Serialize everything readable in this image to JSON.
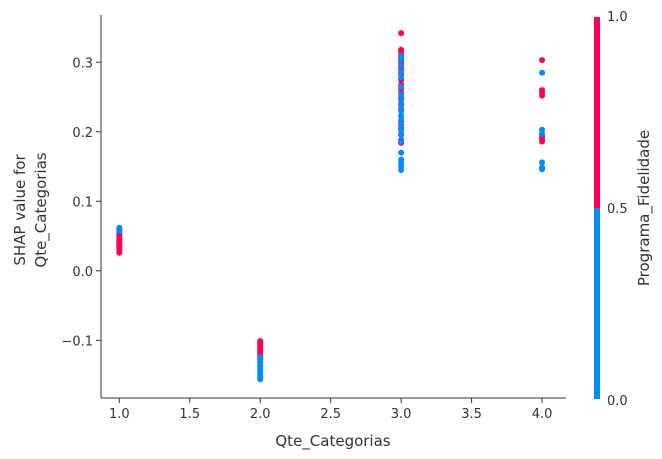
{
  "chart_data": {
    "type": "scatter",
    "xlabel": "Qte_Categorias",
    "ylabel_lines": [
      "SHAP value for",
      "Qte_Categorias"
    ],
    "xlim": [
      0.87,
      4.17
    ],
    "ylim": [
      -0.183,
      0.368
    ],
    "x_ticks": [
      "1.0",
      "1.5",
      "2.0",
      "2.5",
      "3.0",
      "3.5",
      "4.0"
    ],
    "y_ticks": [
      "−0.1",
      "0.0",
      "0.1",
      "0.2",
      "0.3"
    ],
    "colorbar": {
      "label": "Programa_Fidelidade",
      "ticks": [
        "1.0",
        "0.5",
        "0.0"
      ],
      "range": [
        0.0,
        1.0
      ],
      "low_color": "#008bfb",
      "high_color": "#ff0051"
    },
    "colors": {
      "low": "#008bfb",
      "high": "#ff0051"
    },
    "points": [
      {
        "x": 1.0,
        "y": 0.062,
        "c": 0
      },
      {
        "x": 1.0,
        "y": 0.06,
        "c": 0
      },
      {
        "x": 1.0,
        "y": 0.058,
        "c": 0
      },
      {
        "x": 1.0,
        "y": 0.056,
        "c": 0
      },
      {
        "x": 1.0,
        "y": 0.054,
        "c": 0
      },
      {
        "x": 1.0,
        "y": 0.052,
        "c": 0
      },
      {
        "x": 1.0,
        "y": 0.05,
        "c": 0
      },
      {
        "x": 1.0,
        "y": 0.048,
        "c": 0
      },
      {
        "x": 1.0,
        "y": 0.046,
        "c": 0
      },
      {
        "x": 1.0,
        "y": 0.044,
        "c": 0
      },
      {
        "x": 1.0,
        "y": 0.042,
        "c": 0
      },
      {
        "x": 1.0,
        "y": 0.04,
        "c": 0
      },
      {
        "x": 1.0,
        "y": 0.038,
        "c": 0
      },
      {
        "x": 1.0,
        "y": 0.036,
        "c": 0
      },
      {
        "x": 1.0,
        "y": 0.05,
        "c": 1
      },
      {
        "x": 1.0,
        "y": 0.044,
        "c": 1
      },
      {
        "x": 1.0,
        "y": 0.04,
        "c": 1
      },
      {
        "x": 1.0,
        "y": 0.037,
        "c": 1
      },
      {
        "x": 1.0,
        "y": 0.034,
        "c": 1
      },
      {
        "x": 1.0,
        "y": 0.031,
        "c": 1
      },
      {
        "x": 1.0,
        "y": 0.028,
        "c": 1
      },
      {
        "x": 1.0,
        "y": 0.026,
        "c": 1
      },
      {
        "x": 2.0,
        "y": -0.101,
        "c": 1
      },
      {
        "x": 2.0,
        "y": -0.104,
        "c": 1
      },
      {
        "x": 2.0,
        "y": -0.107,
        "c": 1
      },
      {
        "x": 2.0,
        "y": -0.11,
        "c": 1
      },
      {
        "x": 2.0,
        "y": -0.113,
        "c": 1
      },
      {
        "x": 2.0,
        "y": -0.116,
        "c": 1
      },
      {
        "x": 2.0,
        "y": -0.119,
        "c": 1
      },
      {
        "x": 2.0,
        "y": -0.122,
        "c": 1
      },
      {
        "x": 2.0,
        "y": -0.126,
        "c": 1
      },
      {
        "x": 2.0,
        "y": -0.131,
        "c": 1
      },
      {
        "x": 2.0,
        "y": -0.124,
        "c": 0
      },
      {
        "x": 2.0,
        "y": -0.128,
        "c": 0
      },
      {
        "x": 2.0,
        "y": -0.132,
        "c": 0
      },
      {
        "x": 2.0,
        "y": -0.136,
        "c": 0
      },
      {
        "x": 2.0,
        "y": -0.139,
        "c": 0
      },
      {
        "x": 2.0,
        "y": -0.142,
        "c": 0
      },
      {
        "x": 2.0,
        "y": -0.145,
        "c": 0
      },
      {
        "x": 2.0,
        "y": -0.148,
        "c": 0
      },
      {
        "x": 2.0,
        "y": -0.151,
        "c": 0
      },
      {
        "x": 2.0,
        "y": -0.154,
        "c": 0
      },
      {
        "x": 2.0,
        "y": -0.156,
        "c": 0
      },
      {
        "x": 3.0,
        "y": 0.342,
        "c": 1
      },
      {
        "x": 3.0,
        "y": 0.318,
        "c": 1
      },
      {
        "x": 3.0,
        "y": 0.315,
        "c": 1
      },
      {
        "x": 3.0,
        "y": 0.311,
        "c": 1
      },
      {
        "x": 3.0,
        "y": 0.307,
        "c": 1
      },
      {
        "x": 3.0,
        "y": 0.301,
        "c": 1
      },
      {
        "x": 3.0,
        "y": 0.297,
        "c": 1
      },
      {
        "x": 3.0,
        "y": 0.292,
        "c": 1
      },
      {
        "x": 3.0,
        "y": 0.288,
        "c": 1
      },
      {
        "x": 3.0,
        "y": 0.283,
        "c": 1
      },
      {
        "x": 3.0,
        "y": 0.275,
        "c": 1
      },
      {
        "x": 3.0,
        "y": 0.268,
        "c": 1
      },
      {
        "x": 3.0,
        "y": 0.262,
        "c": 1
      },
      {
        "x": 3.0,
        "y": 0.256,
        "c": 1
      },
      {
        "x": 3.0,
        "y": 0.249,
        "c": 1
      },
      {
        "x": 3.0,
        "y": 0.24,
        "c": 1
      },
      {
        "x": 3.0,
        "y": 0.232,
        "c": 1
      },
      {
        "x": 3.0,
        "y": 0.214,
        "c": 1
      },
      {
        "x": 3.0,
        "y": 0.205,
        "c": 1
      },
      {
        "x": 3.0,
        "y": 0.196,
        "c": 1
      },
      {
        "x": 3.0,
        "y": 0.188,
        "c": 1
      },
      {
        "x": 3.0,
        "y": 0.184,
        "c": 1
      },
      {
        "x": 3.0,
        "y": 0.309,
        "c": 0
      },
      {
        "x": 3.0,
        "y": 0.304,
        "c": 0
      },
      {
        "x": 3.0,
        "y": 0.295,
        "c": 0
      },
      {
        "x": 3.0,
        "y": 0.286,
        "c": 0
      },
      {
        "x": 3.0,
        "y": 0.278,
        "c": 0
      },
      {
        "x": 3.0,
        "y": 0.265,
        "c": 0
      },
      {
        "x": 3.0,
        "y": 0.254,
        "c": 0
      },
      {
        "x": 3.0,
        "y": 0.246,
        "c": 0
      },
      {
        "x": 3.0,
        "y": 0.238,
        "c": 0
      },
      {
        "x": 3.0,
        "y": 0.23,
        "c": 0
      },
      {
        "x": 3.0,
        "y": 0.223,
        "c": 0
      },
      {
        "x": 3.0,
        "y": 0.217,
        "c": 0
      },
      {
        "x": 3.0,
        "y": 0.21,
        "c": 0
      },
      {
        "x": 3.0,
        "y": 0.202,
        "c": 0
      },
      {
        "x": 3.0,
        "y": 0.195,
        "c": 0
      },
      {
        "x": 3.0,
        "y": 0.186,
        "c": 0
      },
      {
        "x": 3.0,
        "y": 0.17,
        "c": 0
      },
      {
        "x": 3.0,
        "y": 0.16,
        "c": 0
      },
      {
        "x": 3.0,
        "y": 0.155,
        "c": 0
      },
      {
        "x": 3.0,
        "y": 0.15,
        "c": 0
      },
      {
        "x": 3.0,
        "y": 0.145,
        "c": 0
      },
      {
        "x": 4.0,
        "y": 0.303,
        "c": 1
      },
      {
        "x": 4.0,
        "y": 0.26,
        "c": 1
      },
      {
        "x": 4.0,
        "y": 0.256,
        "c": 1
      },
      {
        "x": 4.0,
        "y": 0.252,
        "c": 1
      },
      {
        "x": 4.0,
        "y": 0.194,
        "c": 1
      },
      {
        "x": 4.0,
        "y": 0.19,
        "c": 1
      },
      {
        "x": 4.0,
        "y": 0.186,
        "c": 1
      },
      {
        "x": 4.0,
        "y": 0.285,
        "c": 0
      },
      {
        "x": 4.0,
        "y": 0.203,
        "c": 0
      },
      {
        "x": 4.0,
        "y": 0.197,
        "c": 0
      },
      {
        "x": 4.0,
        "y": 0.156,
        "c": 0
      },
      {
        "x": 4.0,
        "y": 0.149,
        "c": 0
      },
      {
        "x": 4.0,
        "y": 0.146,
        "c": 0
      }
    ]
  }
}
